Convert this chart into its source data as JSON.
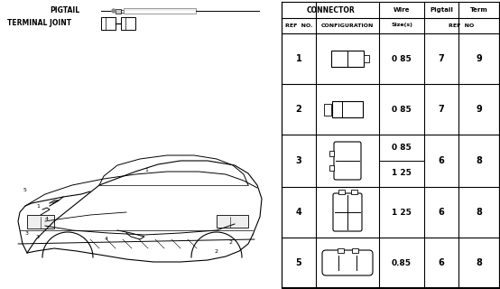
{
  "bg_color": "#ffffff",
  "rows": [
    {
      "ref": "1",
      "wire": "0 85",
      "pigtail": "7",
      "term": "9"
    },
    {
      "ref": "2",
      "wire": "0 85",
      "pigtail": "7",
      "term": "9"
    },
    {
      "ref": "3",
      "wire": [
        "0 85",
        "1 25"
      ],
      "pigtail": "6",
      "term": "8"
    },
    {
      "ref": "4",
      "wire": "1 25",
      "pigtail": "6",
      "term": "8"
    },
    {
      "ref": "5",
      "wire": "0.85",
      "pigtail": "6",
      "term": "8"
    }
  ]
}
